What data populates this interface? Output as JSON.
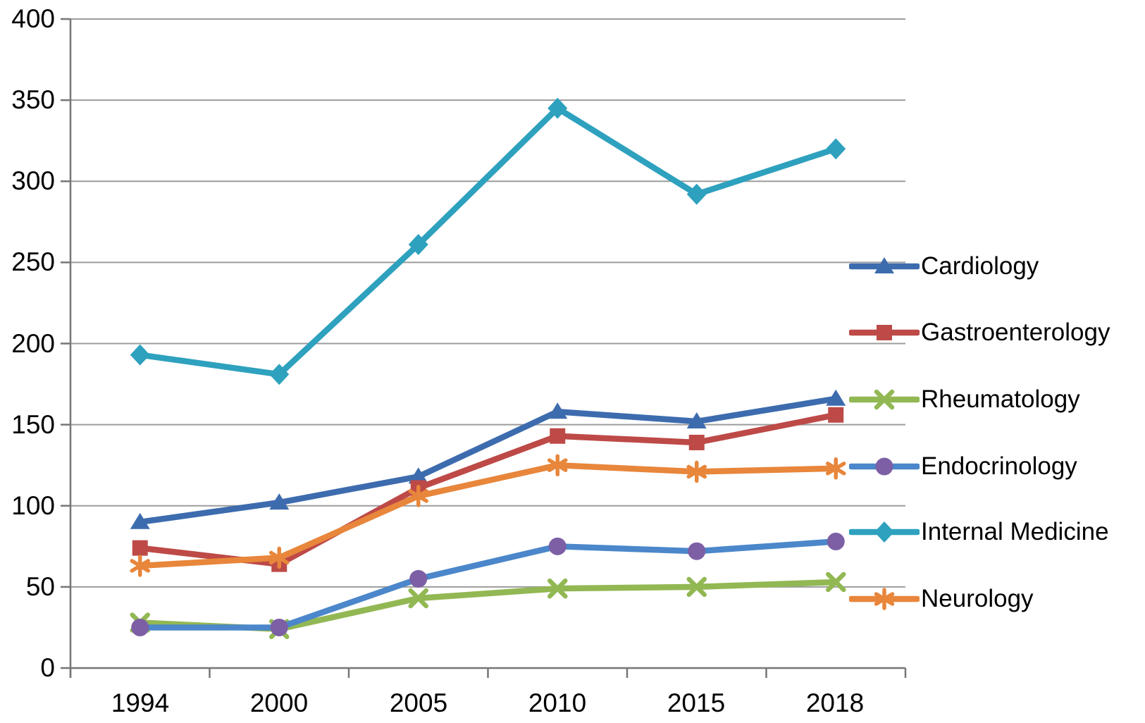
{
  "chart_data": {
    "type": "line",
    "title": "",
    "xlabel": "",
    "ylabel": "",
    "categories": [
      "1994",
      "2000",
      "2005",
      "2010",
      "2015",
      "2018"
    ],
    "series": [
      {
        "name": "Cardiology",
        "marker": "triangle",
        "line_color": "#3D6CAE",
        "marker_color": "#3D6CAE",
        "values": [
          90,
          102,
          118,
          158,
          152,
          166
        ]
      },
      {
        "name": "Gastroenterology",
        "marker": "square",
        "line_color": "#BD4A47",
        "marker_color": "#BD4A47",
        "values": [
          74,
          64,
          111,
          143,
          139,
          156
        ]
      },
      {
        "name": "Rheumatology",
        "marker": "x",
        "line_color": "#92B853",
        "marker_color": "#92B853",
        "values": [
          28,
          24,
          43,
          49,
          50,
          53
        ]
      },
      {
        "name": "Endocrinology",
        "marker": "circle",
        "line_color": "#4B87CA",
        "marker_color": "#7C5FA5",
        "values": [
          25,
          25,
          55,
          75,
          72,
          78
        ]
      },
      {
        "name": "Internal Medicine",
        "marker": "diamond",
        "line_color": "#2EA1BE",
        "marker_color": "#2EA1BE",
        "values": [
          193,
          181,
          261,
          345,
          292,
          320
        ]
      },
      {
        "name": "Neurology",
        "marker": "asterisk",
        "line_color": "#E8863B",
        "marker_color": "#E8863B",
        "values": [
          63,
          68,
          106,
          125,
          121,
          123
        ]
      }
    ],
    "ylim": [
      0,
      400
    ],
    "ytick_step": 50,
    "yticks": [
      "400",
      "350",
      "300",
      "250",
      "200",
      "150",
      "100",
      "50",
      "0"
    ],
    "grid": true,
    "gridline_color": "#9c9c9c",
    "axis_color": "#767676",
    "text_color": "#000000",
    "legend_position": "right-overlay"
  }
}
